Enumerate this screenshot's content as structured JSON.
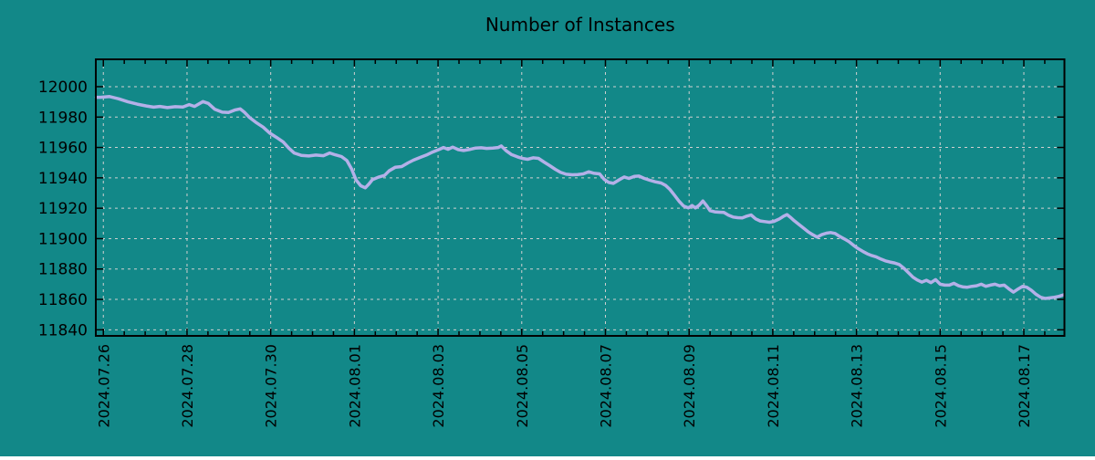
{
  "title": "Number of Instances",
  "chart_data": {
    "type": "line",
    "title": "Number of Instances",
    "legend": false,
    "grid": true,
    "x_unit": "days_since_2024_07_26",
    "x_major_tick_interval_days": 2,
    "x_minor_tick_interval_days": 0.5,
    "xlim_days": [
      -0.18,
      22.97
    ],
    "ylim": [
      11836,
      12018
    ],
    "y_ticks": [
      12000,
      11980,
      11960,
      11940,
      11920,
      11900,
      11880,
      11860,
      11840
    ],
    "x_tick_labels": [
      "2024.07.26",
      "2024.07.28",
      "2024.07.30",
      "2024.08.01",
      "2024.08.03",
      "2024.08.05",
      "2024.08.07",
      "2024.08.09",
      "2024.08.11",
      "2024.08.13",
      "2024.08.15",
      "2024.08.17"
    ],
    "colors": {
      "background": "#128888",
      "line": "#b4b0e8",
      "grid": "#d0d0d0",
      "axis": "#000000",
      "text": "#000000"
    },
    "series": [
      {
        "name": "instances",
        "points": [
          [
            -0.17,
            11993
          ],
          [
            -0.07,
            11993
          ],
          [
            0.15,
            11993.5
          ],
          [
            0.37,
            11992
          ],
          [
            0.59,
            11990
          ],
          [
            0.81,
            11988.5
          ],
          [
            1.03,
            11987.3
          ],
          [
            1.2,
            11986.5
          ],
          [
            1.35,
            11987
          ],
          [
            1.53,
            11986.2
          ],
          [
            1.72,
            11986.8
          ],
          [
            1.9,
            11986.6
          ],
          [
            2.05,
            11988.2
          ],
          [
            2.18,
            11987
          ],
          [
            2.38,
            11990.2
          ],
          [
            2.51,
            11989
          ],
          [
            2.66,
            11985.2
          ],
          [
            2.84,
            11983.2
          ],
          [
            2.99,
            11983
          ],
          [
            3.14,
            11984.6
          ],
          [
            3.27,
            11985.4
          ],
          [
            3.38,
            11983
          ],
          [
            3.49,
            11979.8
          ],
          [
            3.64,
            11976.6
          ],
          [
            3.82,
            11973.4
          ],
          [
            3.97,
            11969.6
          ],
          [
            4.14,
            11966.6
          ],
          [
            4.3,
            11963.6
          ],
          [
            4.43,
            11959.6
          ],
          [
            4.56,
            11956.4
          ],
          [
            4.73,
            11954.8
          ],
          [
            4.91,
            11954.4
          ],
          [
            5.08,
            11955
          ],
          [
            5.26,
            11954.6
          ],
          [
            5.41,
            11956.4
          ],
          [
            5.54,
            11955.2
          ],
          [
            5.69,
            11954
          ],
          [
            5.82,
            11951.4
          ],
          [
            5.93,
            11946
          ],
          [
            6.04,
            11938.6
          ],
          [
            6.15,
            11934.8
          ],
          [
            6.26,
            11933.4
          ],
          [
            6.35,
            11936
          ],
          [
            6.43,
            11938.8
          ],
          [
            6.57,
            11940.4
          ],
          [
            6.72,
            11941.6
          ],
          [
            6.83,
            11944.6
          ],
          [
            6.98,
            11947
          ],
          [
            7.13,
            11947.4
          ],
          [
            7.28,
            11949.8
          ],
          [
            7.41,
            11951.6
          ],
          [
            7.57,
            11953.4
          ],
          [
            7.72,
            11955
          ],
          [
            7.87,
            11957
          ],
          [
            8.03,
            11958.8
          ],
          [
            8.13,
            11960
          ],
          [
            8.24,
            11958.8
          ],
          [
            8.35,
            11960.2
          ],
          [
            8.48,
            11958.6
          ],
          [
            8.61,
            11958
          ],
          [
            8.77,
            11958.8
          ],
          [
            8.9,
            11959.6
          ],
          [
            9.03,
            11959.8
          ],
          [
            9.16,
            11959.4
          ],
          [
            9.31,
            11959.6
          ],
          [
            9.44,
            11960
          ],
          [
            9.51,
            11961
          ],
          [
            9.62,
            11958
          ],
          [
            9.75,
            11955.4
          ],
          [
            9.9,
            11953.8
          ],
          [
            10.01,
            11952.8
          ],
          [
            10.14,
            11952.2
          ],
          [
            10.27,
            11953.2
          ],
          [
            10.4,
            11952.8
          ],
          [
            10.53,
            11950.4
          ],
          [
            10.67,
            11948
          ],
          [
            10.8,
            11945.6
          ],
          [
            10.93,
            11943.6
          ],
          [
            11.06,
            11942.4
          ],
          [
            11.21,
            11942
          ],
          [
            11.34,
            11942.2
          ],
          [
            11.47,
            11942.6
          ],
          [
            11.6,
            11944
          ],
          [
            11.73,
            11943
          ],
          [
            11.86,
            11942.6
          ],
          [
            11.97,
            11939
          ],
          [
            12.08,
            11937
          ],
          [
            12.19,
            11936.4
          ],
          [
            12.32,
            11938.6
          ],
          [
            12.45,
            11940.6
          ],
          [
            12.56,
            11939.6
          ],
          [
            12.69,
            11941
          ],
          [
            12.8,
            11941.2
          ],
          [
            12.93,
            11939.6
          ],
          [
            13.06,
            11938.4
          ],
          [
            13.19,
            11937.4
          ],
          [
            13.33,
            11936.6
          ],
          [
            13.44,
            11935
          ],
          [
            13.54,
            11932.4
          ],
          [
            13.65,
            11928.6
          ],
          [
            13.76,
            11924.6
          ],
          [
            13.87,
            11921.4
          ],
          [
            13.98,
            11920.2
          ],
          [
            14.07,
            11921.8
          ],
          [
            14.15,
            11920.2
          ],
          [
            14.24,
            11922
          ],
          [
            14.33,
            11924.8
          ],
          [
            14.42,
            11921.6
          ],
          [
            14.5,
            11918.4
          ],
          [
            14.61,
            11917.6
          ],
          [
            14.72,
            11917.4
          ],
          [
            14.83,
            11917.2
          ],
          [
            14.94,
            11915.4
          ],
          [
            15.05,
            11914.2
          ],
          [
            15.16,
            11913.8
          ],
          [
            15.27,
            11913.6
          ],
          [
            15.38,
            11914.8
          ],
          [
            15.48,
            11915.6
          ],
          [
            15.59,
            11913
          ],
          [
            15.7,
            11911.6
          ],
          [
            15.81,
            11911.2
          ],
          [
            15.92,
            11910.8
          ],
          [
            16.03,
            11911.4
          ],
          [
            16.16,
            11913
          ],
          [
            16.25,
            11914.6
          ],
          [
            16.34,
            11915.8
          ],
          [
            16.42,
            11914
          ],
          [
            16.51,
            11911.8
          ],
          [
            16.62,
            11909.4
          ],
          [
            16.73,
            11907
          ],
          [
            16.84,
            11904.6
          ],
          [
            16.95,
            11902.6
          ],
          [
            17.06,
            11901
          ],
          [
            17.17,
            11902.6
          ],
          [
            17.28,
            11903.6
          ],
          [
            17.38,
            11904
          ],
          [
            17.49,
            11903.4
          ],
          [
            17.6,
            11901.4
          ],
          [
            17.71,
            11899.8
          ],
          [
            17.82,
            11898
          ],
          [
            17.93,
            11895.6
          ],
          [
            18.04,
            11893.4
          ],
          [
            18.15,
            11891.6
          ],
          [
            18.26,
            11890
          ],
          [
            18.37,
            11888.8
          ],
          [
            18.47,
            11888
          ],
          [
            18.58,
            11886.6
          ],
          [
            18.69,
            11885.4
          ],
          [
            18.8,
            11884.6
          ],
          [
            18.91,
            11884
          ],
          [
            19.02,
            11883
          ],
          [
            19.13,
            11880.6
          ],
          [
            19.24,
            11877.6
          ],
          [
            19.35,
            11874.6
          ],
          [
            19.45,
            11872.8
          ],
          [
            19.56,
            11871.4
          ],
          [
            19.67,
            11872.6
          ],
          [
            19.78,
            11871
          ],
          [
            19.89,
            11873
          ],
          [
            20,
            11870
          ],
          [
            20.11,
            11869.4
          ],
          [
            20.22,
            11869.4
          ],
          [
            20.33,
            11870.6
          ],
          [
            20.44,
            11869
          ],
          [
            20.55,
            11868.2
          ],
          [
            20.65,
            11868
          ],
          [
            20.76,
            11868.6
          ],
          [
            20.87,
            11869
          ],
          [
            20.98,
            11870
          ],
          [
            21.09,
            11868.6
          ],
          [
            21.2,
            11869.4
          ],
          [
            21.31,
            11870
          ],
          [
            21.42,
            11869
          ],
          [
            21.53,
            11869.4
          ],
          [
            21.64,
            11867
          ],
          [
            21.75,
            11864.8
          ],
          [
            21.86,
            11866.8
          ],
          [
            21.97,
            11868.6
          ],
          [
            22.07,
            11868
          ],
          [
            22.18,
            11866
          ],
          [
            22.29,
            11863.4
          ],
          [
            22.4,
            11861.4
          ],
          [
            22.51,
            11860.6
          ],
          [
            22.62,
            11861
          ],
          [
            22.73,
            11861.4
          ],
          [
            22.84,
            11862
          ],
          [
            22.95,
            11863
          ]
        ]
      }
    ]
  }
}
